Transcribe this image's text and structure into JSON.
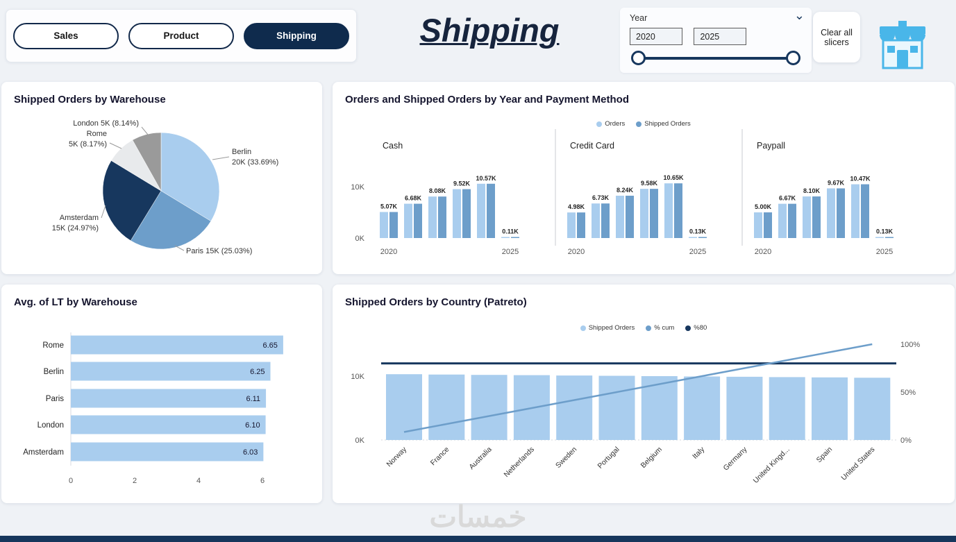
{
  "page": {
    "watermark": "خمسات"
  },
  "nav": {
    "tabs": [
      {
        "label": "Sales",
        "active": false
      },
      {
        "label": "Product",
        "active": false
      },
      {
        "label": "Shipping",
        "active": true
      }
    ]
  },
  "header": {
    "title": "Shipping"
  },
  "slicer": {
    "label": "Year",
    "from": "2020",
    "to": "2025",
    "clear_label": "Clear all slicers"
  },
  "colors": {
    "accent_light": "#a9cdee",
    "accent_medium": "#6d9eca",
    "accent_navy": "#17375e",
    "gray_light": "#e8eaec",
    "gray_dark": "#9a9a9a",
    "store_icon": "#49b6e9"
  },
  "chart_data": [
    {
      "id": "warehouse-pie",
      "type": "pie",
      "title": "Shipped Orders by Warehouse",
      "slices": [
        {
          "label": "Berlin",
          "value_text": "20K",
          "pct": 33.69,
          "color_key": "accent_light"
        },
        {
          "label": "Paris",
          "value_text": "15K",
          "pct": 25.03,
          "color_key": "accent_medium"
        },
        {
          "label": "Amsterdam",
          "value_text": "15K",
          "pct": 24.97,
          "color_key": "accent_navy"
        },
        {
          "label": "Rome",
          "value_text": "5K",
          "pct": 8.17,
          "color_key": "gray_light"
        },
        {
          "label": "London",
          "value_text": "5K",
          "pct": 8.14,
          "color_key": "gray_dark"
        }
      ]
    },
    {
      "id": "payment-bars",
      "type": "bar",
      "title": "Orders and Shipped Orders by Year and Payment Method",
      "legend": [
        {
          "label": "Orders",
          "color_key": "accent_light"
        },
        {
          "label": "Shipped Orders",
          "color_key": "accent_medium"
        }
      ],
      "x_first": "2020",
      "x_last": "2025",
      "y_ticks": [
        "0K",
        "10K"
      ],
      "y_max": 10,
      "panels": [
        {
          "name": "Cash",
          "labels": [
            "5.07K",
            "6.68K",
            "8.08K",
            "9.52K",
            "10.57K",
            "0.11K"
          ],
          "values": [
            5.07,
            6.68,
            8.08,
            9.52,
            10.57,
            0.11
          ]
        },
        {
          "name": "Credit Card",
          "labels": [
            "4.98K",
            "6.73K",
            "8.24K",
            "9.58K",
            "10.65K",
            "0.13K"
          ],
          "values": [
            4.98,
            6.73,
            8.24,
            9.58,
            10.65,
            0.13
          ]
        },
        {
          "name": "Paypall",
          "labels": [
            "5.00K",
            "6.67K",
            "8.10K",
            "9.67K",
            "10.47K",
            "0.13K"
          ],
          "values": [
            5.0,
            6.67,
            8.1,
            9.67,
            10.47,
            0.13
          ]
        }
      ]
    },
    {
      "id": "lt-hbar",
      "type": "bar",
      "title": "Avg. of LT by Warehouse",
      "categories": [
        "Rome",
        "Berlin",
        "Paris",
        "London",
        "Amsterdam"
      ],
      "values": [
        6.65,
        6.25,
        6.11,
        6.1,
        6.03
      ],
      "value_labels": [
        "6.65",
        "6.25",
        "6.11",
        "6.10",
        "6.03"
      ],
      "x_ticks": [
        "0",
        "2",
        "4",
        "6"
      ],
      "x_max": 6
    },
    {
      "id": "country-pareto",
      "type": "bar",
      "title": "Shipped Orders by Country (Patreto)",
      "legend": [
        {
          "label": "Shipped Orders",
          "color_key": "accent_light"
        },
        {
          "label": "% cum",
          "color_key": "accent_medium"
        },
        {
          "label": "%80",
          "color_key": "accent_navy"
        }
      ],
      "categories": [
        "Norway",
        "France",
        "Australia",
        "Netherlands",
        "Sweden",
        "Portugal",
        "Belgium",
        "Italy",
        "Germany",
        "United Kingd...",
        "Spain",
        "United States"
      ],
      "values": [
        10.3,
        10.25,
        10.2,
        10.15,
        10.1,
        10.05,
        10.0,
        9.95,
        9.9,
        9.85,
        9.8,
        9.75
      ],
      "cum_pct": [
        8.3,
        16.7,
        25.0,
        33.3,
        41.7,
        50.0,
        58.3,
        66.7,
        75.0,
        83.3,
        91.7,
        100.0
      ],
      "threshold_pct": 80,
      "y_ticks_left": [
        "0K",
        "10K"
      ],
      "y_ticks_right": [
        "0%",
        "50%",
        "100%"
      ]
    }
  ]
}
